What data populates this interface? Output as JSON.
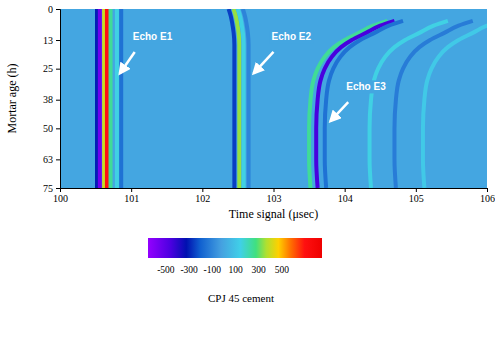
{
  "chart_data": {
    "type": "heatmap",
    "xlabel": "Time signal (μsec)",
    "ylabel": "Mortar age (h)",
    "xlim": [
      100,
      106
    ],
    "xticks": [
      100,
      101,
      102,
      103,
      104,
      105,
      106
    ],
    "ylim": [
      0,
      75
    ],
    "yticks": [
      0,
      13,
      25,
      38,
      50,
      63,
      75
    ],
    "base_value": 0,
    "fringes": [
      {
        "value": -300,
        "x": [
          100.52,
          100.52
        ],
        "y": [
          0,
          75
        ]
      },
      {
        "value": -550,
        "x": [
          100.56,
          100.56
        ],
        "y": [
          0,
          75
        ]
      },
      {
        "value": 400,
        "x": [
          100.62,
          100.62
        ],
        "y": [
          0,
          75
        ]
      },
      {
        "value": 700,
        "x": [
          100.66,
          100.66
        ],
        "y": [
          0,
          75
        ]
      },
      {
        "value": 250,
        "x": [
          100.71,
          100.71
        ],
        "y": [
          0,
          75
        ]
      },
      {
        "value": 150,
        "x": [
          100.8,
          100.8
        ],
        "y": [
          0,
          75
        ]
      },
      {
        "value": -150,
        "x": [
          100.86,
          100.86
        ],
        "y": [
          0,
          75
        ]
      },
      {
        "value": -250,
        "x": [
          102.37,
          102.4,
          102.42,
          102.44,
          102.45,
          102.45
        ],
        "y": [
          0,
          3,
          6,
          10,
          15,
          75
        ]
      },
      {
        "value": 350,
        "x": [
          102.44,
          102.47,
          102.49,
          102.51,
          102.52,
          102.52
        ],
        "y": [
          0,
          3,
          6,
          10,
          15,
          75
        ]
      },
      {
        "value": 150,
        "x": [
          102.5,
          102.53,
          102.55,
          102.57,
          102.58,
          102.58
        ],
        "y": [
          0,
          3,
          6,
          10,
          15,
          75
        ]
      },
      {
        "value": -100,
        "x": [
          102.57,
          102.6,
          102.62,
          102.64,
          102.65,
          102.65
        ],
        "y": [
          0,
          3,
          6,
          10,
          15,
          75
        ]
      },
      {
        "value": 250,
        "x": [
          104.6,
          104.4,
          104.2,
          104.0,
          103.85,
          103.72,
          103.62,
          103.56,
          103.52,
          103.5,
          103.5,
          103.52
        ],
        "y": [
          5,
          7,
          10,
          13,
          16,
          20,
          25,
          30,
          38,
          50,
          63,
          75
        ]
      },
      {
        "value": -450,
        "x": [
          104.7,
          104.5,
          104.3,
          104.1,
          103.95,
          103.82,
          103.72,
          103.66,
          103.62,
          103.6,
          103.6,
          103.62
        ],
        "y": [
          5,
          7,
          10,
          13,
          16,
          20,
          25,
          30,
          38,
          50,
          63,
          75
        ]
      },
      {
        "value": -150,
        "x": [
          104.82,
          104.62,
          104.42,
          104.22,
          104.07,
          103.94,
          103.84,
          103.78,
          103.74,
          103.72,
          103.72,
          103.74
        ],
        "y": [
          5,
          7,
          10,
          13,
          16,
          20,
          25,
          30,
          38,
          50,
          63,
          75
        ]
      },
      {
        "value": 150,
        "x": [
          105.45,
          105.25,
          105.05,
          104.85,
          104.7,
          104.57,
          104.47,
          104.41,
          104.37,
          104.35,
          104.35,
          104.37
        ],
        "y": [
          5,
          7,
          10,
          13,
          16,
          20,
          25,
          30,
          38,
          50,
          63,
          75
        ]
      },
      {
        "value": -120,
        "x": [
          105.8,
          105.6,
          105.4,
          105.2,
          105.05,
          104.92,
          104.82,
          104.76,
          104.72,
          104.7,
          104.7,
          104.72
        ],
        "y": [
          5,
          7,
          10,
          13,
          16,
          20,
          25,
          30,
          38,
          50,
          63,
          75
        ]
      },
      {
        "value": 120,
        "x": [
          106.2,
          106.0,
          105.8,
          105.6,
          105.45,
          105.32,
          105.22,
          105.16,
          105.12,
          105.1,
          105.1,
          105.12
        ],
        "y": [
          5,
          7,
          10,
          13,
          16,
          20,
          25,
          30,
          38,
          50,
          63,
          75
        ]
      }
    ],
    "annotations": [
      {
        "text": "Echo E1",
        "x": 101.3,
        "y": 12,
        "arrow_from": [
          101.05,
          18
        ],
        "arrow_to": [
          100.84,
          27
        ]
      },
      {
        "text": "Echo E2",
        "x": 103.25,
        "y": 12,
        "arrow_from": [
          103.0,
          18
        ],
        "arrow_to": [
          102.72,
          27
        ]
      },
      {
        "text": "Echo E3",
        "x": 104.3,
        "y": 33,
        "arrow_from": [
          104.05,
          39
        ],
        "arrow_to": [
          103.8,
          47
        ]
      }
    ],
    "colorbar": {
      "range": [
        -650,
        850
      ],
      "ticks": [
        -500,
        -300,
        -100,
        100,
        300,
        500
      ],
      "title": "CPJ 45 cement"
    }
  }
}
